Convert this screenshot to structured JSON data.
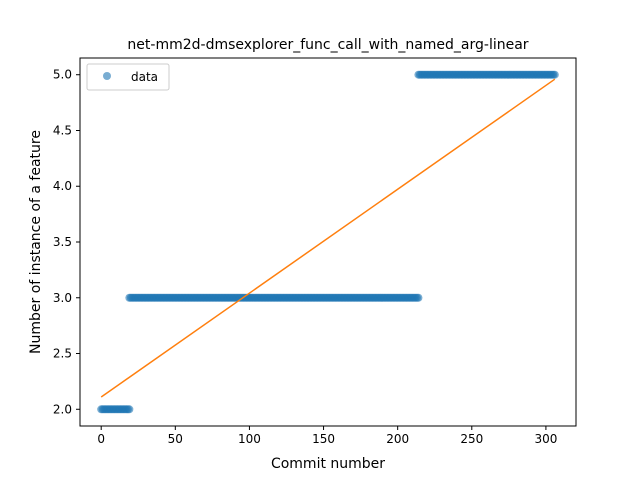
{
  "chart_data": {
    "type": "scatter",
    "title": "net-mm2d-dmsexplorer_func_call_with_named_arg-linear",
    "xlabel": "Commit number",
    "ylabel": "Number of instance of a feature",
    "xlim": [
      -14.3,
      320.3
    ],
    "ylim": [
      1.85,
      5.15
    ],
    "xticks": [
      0,
      50,
      100,
      150,
      200,
      250,
      300
    ],
    "yticks": [
      2.0,
      2.5,
      3.0,
      3.5,
      4.0,
      4.5,
      5.0
    ],
    "xtick_labels": [
      "0",
      "50",
      "100",
      "150",
      "200",
      "250",
      "300"
    ],
    "ytick_labels": [
      "2.0",
      "2.5",
      "3.0",
      "3.5",
      "4.0",
      "4.5",
      "5.0"
    ],
    "legend": {
      "position": "top-left",
      "label": "data"
    },
    "series": [
      {
        "name": "data",
        "kind": "points",
        "color": "#1f77b4",
        "segments": [
          {
            "x_start": 0,
            "x_end": 19,
            "y": 2
          },
          {
            "x_start": 19,
            "x_end": 214,
            "y": 3
          },
          {
            "x_start": 214,
            "x_end": 306,
            "y": 5
          }
        ]
      },
      {
        "kind": "line",
        "color": "#ff7f0e",
        "points": [
          [
            0,
            2.11
          ],
          [
            306,
            4.96
          ]
        ]
      }
    ]
  }
}
